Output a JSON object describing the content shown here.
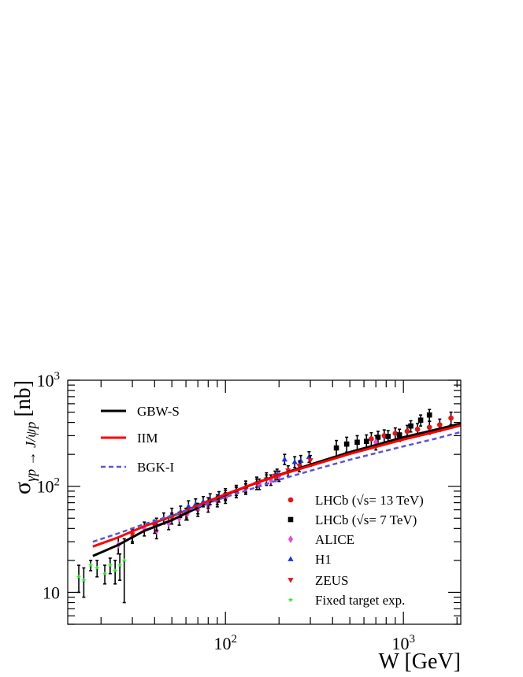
{
  "chart_data": {
    "type": "scatter",
    "xlabel": "W [GeV]",
    "ylabel_main": "σ",
    "ylabel_sub": "γp → J/ψp",
    "ylabel_unit": "[nb]",
    "xscale": "log",
    "yscale": "log",
    "xlim": [
      13,
      2100
    ],
    "ylim": [
      5,
      1000
    ],
    "x_tick_labels": [
      {
        "v": 100,
        "base": "10",
        "exp": "2"
      },
      {
        "v": 1000,
        "base": "10",
        "exp": "3"
      }
    ],
    "y_tick_labels": [
      {
        "v": 10,
        "base": "10",
        "exp": ""
      },
      {
        "v": 100,
        "base": "10",
        "exp": "2"
      },
      {
        "v": 1000,
        "base": "10",
        "exp": "3"
      }
    ],
    "curves": [
      {
        "name": "GBW-S",
        "color": "#000000",
        "dash": "none",
        "points": [
          [
            18,
            22
          ],
          [
            25,
            28
          ],
          [
            35,
            38
          ],
          [
            50,
            48
          ],
          [
            70,
            63
          ],
          [
            100,
            83
          ],
          [
            150,
            108
          ],
          [
            200,
            128
          ],
          [
            300,
            160
          ],
          [
            500,
            210
          ],
          [
            700,
            245
          ],
          [
            1000,
            290
          ],
          [
            1500,
            340
          ],
          [
            2100,
            390
          ]
        ]
      },
      {
        "name": "IIM",
        "color": "#ff0000",
        "dash": "none",
        "points": [
          [
            18,
            27
          ],
          [
            25,
            33
          ],
          [
            35,
            42
          ],
          [
            50,
            52
          ],
          [
            70,
            66
          ],
          [
            100,
            84
          ],
          [
            150,
            108
          ],
          [
            200,
            127
          ],
          [
            300,
            156
          ],
          [
            500,
            202
          ],
          [
            700,
            235
          ],
          [
            1000,
            276
          ],
          [
            1500,
            325
          ],
          [
            2100,
            375
          ]
        ]
      },
      {
        "name": "BGK-I",
        "color": "#5555dd",
        "dash": "6,4",
        "points": [
          [
            18,
            30
          ],
          [
            25,
            36
          ],
          [
            35,
            44
          ],
          [
            50,
            53
          ],
          [
            70,
            64
          ],
          [
            100,
            79
          ],
          [
            150,
            98
          ],
          [
            200,
            115
          ],
          [
            300,
            140
          ],
          [
            500,
            178
          ],
          [
            700,
            205
          ],
          [
            1000,
            238
          ],
          [
            1500,
            280
          ],
          [
            2100,
            325
          ]
        ]
      }
    ],
    "series": [
      {
        "name": "LHCb (√s= 13 TeV)",
        "color": "#ee1111",
        "marker": "circle",
        "points": [
          [
            660,
            280,
            40
          ],
          [
            780,
            300,
            40
          ],
          [
            900,
            315,
            40
          ],
          [
            1050,
            330,
            45
          ],
          [
            1200,
            345,
            45
          ],
          [
            1400,
            360,
            50
          ],
          [
            1600,
            380,
            50
          ],
          [
            1850,
            440,
            60
          ]
        ]
      },
      {
        "name": "LHCb (√s= 7 TeV)",
        "color": "#000000",
        "marker": "square",
        "points": [
          [
            420,
            230,
            40
          ],
          [
            480,
            250,
            40
          ],
          [
            550,
            260,
            40
          ],
          [
            620,
            265,
            40
          ],
          [
            720,
            290,
            40
          ],
          [
            820,
            295,
            40
          ],
          [
            950,
            305,
            40
          ],
          [
            1100,
            370,
            45
          ],
          [
            1250,
            420,
            50
          ],
          [
            1400,
            470,
            60
          ]
        ]
      },
      {
        "name": "ALICE",
        "color": "#ee44dd",
        "marker": "diamond",
        "points": [
          [
            25,
            28,
            5
          ],
          [
            30,
            34,
            5
          ],
          [
            35,
            40,
            6
          ],
          [
            41,
            38,
            6
          ],
          [
            48,
            45,
            6
          ],
          [
            55,
            50,
            7
          ],
          [
            61,
            55,
            7
          ],
          [
            70,
            60,
            8
          ],
          [
            80,
            65,
            8
          ],
          [
            90,
            72,
            8
          ],
          [
            100,
            78,
            9
          ],
          [
            115,
            88,
            10
          ],
          [
            130,
            95,
            10
          ],
          [
            155,
            105,
            12
          ],
          [
            180,
            115,
            13
          ],
          [
            200,
            125,
            14
          ],
          [
            700,
            260,
            40
          ]
        ]
      },
      {
        "name": "H1",
        "color": "#1133ff",
        "marker": "triangle-up",
        "points": [
          [
            41,
            44,
            6
          ],
          [
            45,
            50,
            6
          ],
          [
            50,
            55,
            7
          ],
          [
            56,
            58,
            7
          ],
          [
            62,
            65,
            8
          ],
          [
            68,
            68,
            8
          ],
          [
            75,
            72,
            8
          ],
          [
            82,
            76,
            9
          ],
          [
            92,
            80,
            9
          ],
          [
            100,
            85,
            10
          ],
          [
            115,
            92,
            10
          ],
          [
            130,
            100,
            12
          ],
          [
            150,
            110,
            12
          ],
          [
            170,
            120,
            14
          ],
          [
            195,
            130,
            15
          ],
          [
            215,
            180,
            20
          ],
          [
            245,
            170,
            20
          ],
          [
            265,
            175,
            20
          ],
          [
            295,
            190,
            22
          ]
        ]
      },
      {
        "name": "ZEUS",
        "color": "#ee1111",
        "marker": "triangle-down",
        "points": [
          [
            30,
            35,
            5
          ],
          [
            40,
            42,
            6
          ],
          [
            50,
            50,
            6
          ],
          [
            60,
            55,
            7
          ],
          [
            70,
            62,
            7
          ],
          [
            80,
            70,
            8
          ],
          [
            90,
            75,
            8
          ],
          [
            100,
            82,
            9
          ],
          [
            115,
            88,
            10
          ],
          [
            130,
            95,
            11
          ],
          [
            150,
            105,
            12
          ],
          [
            170,
            115,
            13
          ],
          [
            190,
            125,
            14
          ],
          [
            225,
            140,
            16
          ],
          [
            260,
            155,
            18
          ],
          [
            300,
            175,
            20
          ]
        ]
      },
      {
        "name": "Fixed target exp.",
        "color": "#22ee22",
        "marker": "star",
        "points": [
          [
            15,
            14,
            4
          ],
          [
            16,
            13,
            4
          ],
          [
            17.5,
            18,
            2
          ],
          [
            19,
            17,
            3
          ],
          [
            21,
            15,
            3
          ],
          [
            22.5,
            18,
            3
          ],
          [
            24,
            16,
            4
          ],
          [
            25.5,
            18,
            5
          ],
          [
            27,
            20,
            12
          ]
        ]
      }
    ],
    "legend_lines": [
      "GBW-S",
      "IIM",
      "BGK-I"
    ],
    "legend_markers": [
      "LHCb (√s= 13 TeV)",
      "LHCb (√s= 7 TeV)",
      "ALICE",
      "H1",
      "ZEUS",
      "Fixed target exp."
    ]
  }
}
